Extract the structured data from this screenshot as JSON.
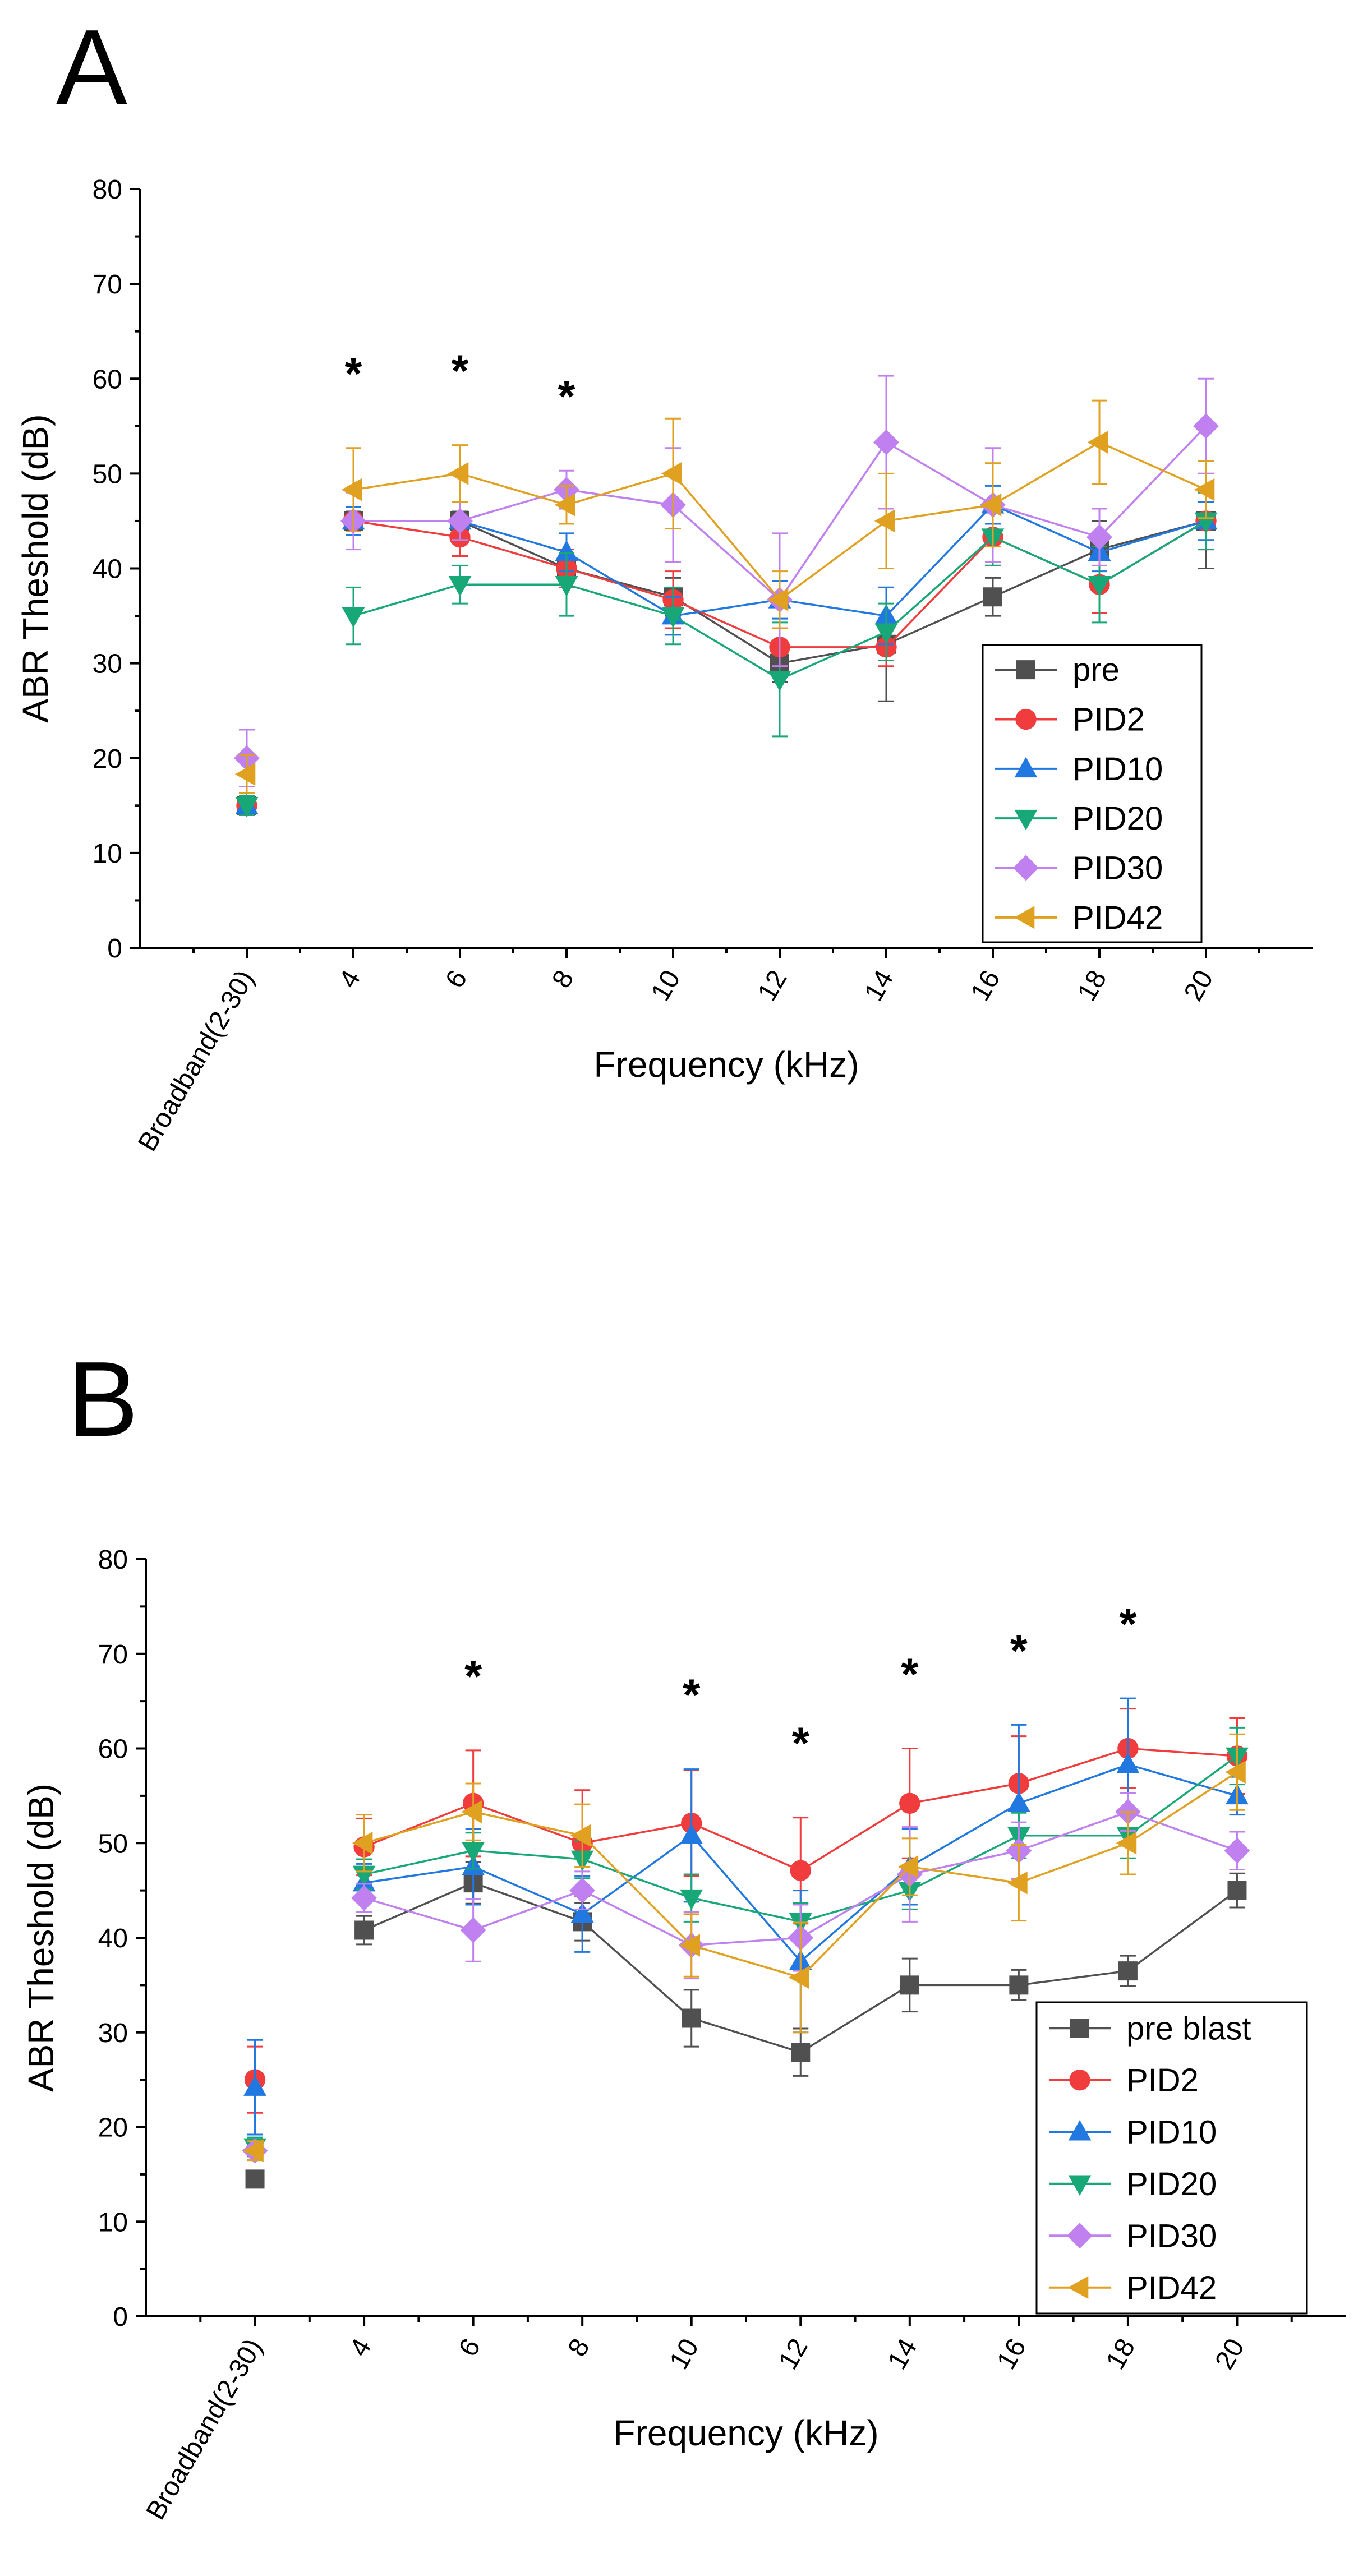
{
  "chart_data": [
    {
      "type": "line",
      "panel_label": "A",
      "xlabel": "Frequency (kHz)",
      "ylabel": "ABR Theshold (dB)",
      "categories": [
        "Broadband(2-30)",
        "4",
        "6",
        "8",
        "10",
        "12",
        "14",
        "16",
        "18",
        "20"
      ],
      "y_ticks": [
        "0",
        "10",
        "20",
        "30",
        "40",
        "50",
        "60",
        "70",
        "80"
      ],
      "ylim": [
        0,
        80
      ],
      "significance_marks": [
        {
          "category_index": 1,
          "symbol": "*"
        },
        {
          "category_index": 2,
          "symbol": "*"
        },
        {
          "category_index": 3,
          "symbol": "*"
        }
      ],
      "legend_position": "bottom-right",
      "series": [
        {
          "name": "pre",
          "color": "#505050",
          "marker": "square",
          "values": [
            15,
            45,
            45,
            40,
            37,
            30,
            32,
            37,
            42,
            45
          ],
          "errors": [
            1,
            1,
            1,
            1,
            2,
            2,
            6,
            2,
            3,
            5
          ]
        },
        {
          "name": "PID2",
          "color": "#f03c3c",
          "marker": "circle",
          "values": [
            15,
            45,
            43.3,
            40,
            36.7,
            31.7,
            31.7,
            43.3,
            38.3,
            45
          ],
          "errors": [
            1,
            1.5,
            2,
            2,
            3,
            2,
            2,
            3,
            3,
            3
          ]
        },
        {
          "name": "PID10",
          "color": "#2078e0",
          "marker": "triangle-up",
          "values": [
            15,
            45,
            45,
            41.7,
            35,
            36.7,
            35,
            46.7,
            41.7,
            45
          ],
          "errors": [
            1,
            1.5,
            2,
            2,
            2,
            2,
            3,
            2,
            2,
            2
          ]
        },
        {
          "name": "PID20",
          "color": "#18a878",
          "marker": "triangle-down",
          "values": [
            15,
            35,
            38.3,
            38.3,
            35,
            28.3,
            33.3,
            43.3,
            38.3,
            45
          ],
          "errors": [
            1,
            3,
            2,
            3.3,
            3,
            6,
            3,
            3,
            4,
            3
          ]
        },
        {
          "name": "PID30",
          "color": "#c080f0",
          "marker": "diamond",
          "values": [
            20,
            45,
            45,
            48.3,
            46.7,
            36.7,
            53.3,
            46.7,
            43.3,
            55
          ],
          "errors": [
            3,
            3,
            2,
            2,
            6,
            7,
            7,
            6,
            3,
            5
          ]
        },
        {
          "name": "PID42",
          "color": "#e0a020",
          "marker": "triangle-left",
          "values": [
            18.3,
            48.3,
            50,
            46.7,
            50,
            36.7,
            45,
            46.7,
            53.3,
            48.3
          ],
          "errors": [
            2,
            4.4,
            3,
            2,
            5.8,
            3,
            5,
            4.4,
            4.4,
            3
          ]
        }
      ]
    },
    {
      "type": "line",
      "panel_label": "B",
      "xlabel": "Frequency (kHz)",
      "ylabel": "ABR Theshold (dB)",
      "categories": [
        "Broadband(2-30)",
        "4",
        "6",
        "8",
        "10",
        "12",
        "14",
        "16",
        "18",
        "20"
      ],
      "y_ticks": [
        "0",
        "10",
        "20",
        "30",
        "40",
        "50",
        "60",
        "70",
        "80"
      ],
      "ylim": [
        0,
        80
      ],
      "significance_marks": [
        {
          "category_index": 2,
          "symbol": "*"
        },
        {
          "category_index": 4,
          "symbol": "*"
        },
        {
          "category_index": 5,
          "symbol": "*"
        },
        {
          "category_index": 6,
          "symbol": "*"
        },
        {
          "category_index": 7,
          "symbol": "*"
        },
        {
          "category_index": 8,
          "symbol": "*"
        }
      ],
      "legend_position": "bottom-right",
      "series": [
        {
          "name": "pre blast",
          "color": "#505050",
          "marker": "square",
          "values": [
            14.5,
            40.8,
            45.8,
            41.7,
            31.5,
            27.9,
            35,
            35,
            36.5,
            45
          ],
          "errors": [
            0.8,
            1.5,
            2.2,
            2,
            3,
            2.5,
            2.8,
            1.6,
            1.6,
            1.8
          ]
        },
        {
          "name": "PID2",
          "color": "#f03c3c",
          "marker": "circle",
          "values": [
            25,
            49.6,
            54.2,
            50,
            52.1,
            47.1,
            54.2,
            56.3,
            60,
            59.2
          ],
          "errors": [
            3.5,
            3,
            5.6,
            5.6,
            5.6,
            5.6,
            5.8,
            5,
            4.2,
            4
          ]
        },
        {
          "name": "PID10",
          "color": "#2078e0",
          "marker": "triangle-up",
          "values": [
            24.2,
            45.8,
            47.5,
            42.5,
            50.8,
            37.5,
            47.5,
            54.2,
            58.3,
            55
          ],
          "errors": [
            5,
            2,
            4,
            4,
            7,
            7.5,
            4,
            8.3,
            7,
            2
          ]
        },
        {
          "name": "PID20",
          "color": "#18a878",
          "marker": "triangle-down",
          "values": [
            17.9,
            46.7,
            49.2,
            48.3,
            44.2,
            41.7,
            45,
            50.8,
            50.8,
            59.2
          ],
          "errors": [
            1,
            1.6,
            1.9,
            2,
            2.5,
            2,
            2,
            2.4,
            2.4,
            3
          ]
        },
        {
          "name": "PID30",
          "color": "#c080f0",
          "marker": "diamond",
          "values": [
            17.5,
            44.2,
            40.8,
            45,
            39.2,
            40,
            46.7,
            49.2,
            53.3,
            49.2
          ],
          "errors": [
            1,
            1.5,
            3.3,
            2,
            3.5,
            3.5,
            5,
            3,
            2,
            2
          ]
        },
        {
          "name": "PID42",
          "color": "#e0a020",
          "marker": "triangle-left",
          "values": [
            17.5,
            50,
            53.3,
            50.8,
            39.2,
            35.8,
            47.5,
            45.8,
            50,
            57.5
          ],
          "errors": [
            1,
            3,
            3,
            3.3,
            3.3,
            5.8,
            3,
            4,
            3.3,
            4
          ]
        }
      ]
    }
  ]
}
